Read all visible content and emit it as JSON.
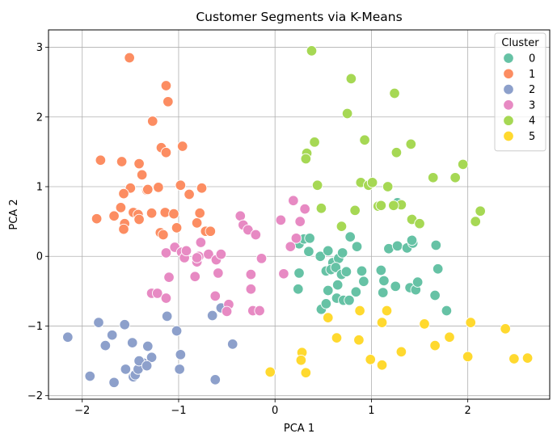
{
  "chart_data": {
    "type": "scatter",
    "title": "Customer Segments via K-Means",
    "xlabel": "PCA 1",
    "ylabel": "PCA 2",
    "xlim": [
      -2.35,
      2.85
    ],
    "ylim": [
      -2.05,
      3.25
    ],
    "xticks": [
      "−2",
      "−1",
      "0",
      "1",
      "2"
    ],
    "yticks": [
      "−2",
      "−1",
      "0",
      "1",
      "2",
      "3"
    ],
    "grid": true,
    "legend": {
      "title": "Cluster",
      "position": "top-right"
    },
    "series": [
      {
        "name": "0",
        "color": "#66c2a5",
        "points": [
          [
            0.25,
            0.18
          ],
          [
            0.3,
            0.25
          ],
          [
            0.35,
            0.07
          ],
          [
            0.36,
            0.26
          ],
          [
            0.25,
            -0.24
          ],
          [
            0.24,
            -0.47
          ],
          [
            0.47,
            0.0
          ],
          [
            0.55,
            0.08
          ],
          [
            0.6,
            -0.09
          ],
          [
            0.66,
            -0.03
          ],
          [
            0.7,
            0.05
          ],
          [
            0.78,
            0.28
          ],
          [
            0.85,
            0.14
          ],
          [
            0.53,
            -0.21
          ],
          [
            0.58,
            -0.19
          ],
          [
            0.63,
            -0.16
          ],
          [
            0.69,
            -0.26
          ],
          [
            0.74,
            -0.22
          ],
          [
            0.55,
            -0.49
          ],
          [
            0.65,
            -0.41
          ],
          [
            0.48,
            -0.76
          ],
          [
            0.53,
            -0.68
          ],
          [
            0.64,
            -0.6
          ],
          [
            0.71,
            -0.63
          ],
          [
            0.77,
            -0.63
          ],
          [
            0.84,
            -0.51
          ],
          [
            0.92,
            -0.36
          ],
          [
            0.9,
            -0.21
          ],
          [
            1.1,
            -0.2
          ],
          [
            1.13,
            -0.35
          ],
          [
            1.25,
            -0.43
          ],
          [
            1.12,
            -0.52
          ],
          [
            1.18,
            0.11
          ],
          [
            1.27,
            0.15
          ],
          [
            1.37,
            0.12
          ],
          [
            1.43,
            0.19
          ],
          [
            1.42,
            0.23
          ],
          [
            1.4,
            -0.45
          ],
          [
            1.46,
            -0.48
          ],
          [
            1.48,
            -0.37
          ],
          [
            1.67,
            0.16
          ],
          [
            1.69,
            -0.18
          ],
          [
            1.66,
            -0.56
          ],
          [
            1.78,
            -0.78
          ],
          [
            1.27,
            0.77
          ]
        ]
      },
      {
        "name": "1",
        "color": "#fc8d62",
        "points": [
          [
            -1.51,
            2.85
          ],
          [
            -1.13,
            2.45
          ],
          [
            -1.11,
            2.22
          ],
          [
            -1.27,
            1.94
          ],
          [
            -1.18,
            1.56
          ],
          [
            -1.13,
            1.49
          ],
          [
            -0.96,
            1.58
          ],
          [
            -1.81,
            1.38
          ],
          [
            -1.59,
            1.36
          ],
          [
            -1.41,
            1.33
          ],
          [
            -1.38,
            1.17
          ],
          [
            -1.5,
            0.98
          ],
          [
            -1.57,
            0.9
          ],
          [
            -1.33,
            0.95
          ],
          [
            -1.21,
            0.99
          ],
          [
            -0.98,
            1.02
          ],
          [
            -0.89,
            0.89
          ],
          [
            -0.76,
            0.98
          ],
          [
            -1.32,
            0.96
          ],
          [
            -1.28,
            0.62
          ],
          [
            -1.14,
            0.63
          ],
          [
            -1.05,
            0.61
          ],
          [
            -0.81,
            0.48
          ],
          [
            -0.78,
            0.62
          ],
          [
            -0.72,
            0.36
          ],
          [
            -0.67,
            0.36
          ],
          [
            -1.6,
            0.7
          ],
          [
            -1.47,
            0.63
          ],
          [
            -1.42,
            0.6
          ],
          [
            -1.41,
            0.53
          ],
          [
            -1.56,
            0.47
          ],
          [
            -1.67,
            0.58
          ],
          [
            -1.19,
            0.34
          ],
          [
            -1.16,
            0.31
          ],
          [
            -1.85,
            0.54
          ],
          [
            -1.02,
            0.41
          ],
          [
            -1.57,
            0.39
          ]
        ]
      },
      {
        "name": "2",
        "color": "#8da0cb",
        "points": [
          [
            -2.15,
            -1.16
          ],
          [
            -1.83,
            -0.95
          ],
          [
            -1.92,
            -1.72
          ],
          [
            -1.76,
            -1.28
          ],
          [
            -1.69,
            -1.13
          ],
          [
            -1.56,
            -0.98
          ],
          [
            -1.48,
            -1.24
          ],
          [
            -1.32,
            -1.29
          ],
          [
            -1.37,
            -1.53
          ],
          [
            -1.55,
            -1.62
          ],
          [
            -1.47,
            -1.73
          ],
          [
            -1.45,
            -1.7
          ],
          [
            -1.42,
            -1.62
          ],
          [
            -1.41,
            -1.5
          ],
          [
            -1.28,
            -1.45
          ],
          [
            -1.67,
            -1.81
          ],
          [
            -1.33,
            -1.57
          ],
          [
            -1.12,
            -0.86
          ],
          [
            -1.02,
            -1.07
          ],
          [
            -0.98,
            -1.41
          ],
          [
            -0.99,
            -1.62
          ],
          [
            -0.65,
            -0.85
          ],
          [
            -0.56,
            -0.74
          ],
          [
            -0.44,
            -1.26
          ],
          [
            -0.62,
            -1.77
          ]
        ]
      },
      {
        "name": "3",
        "color": "#e78ac3",
        "points": [
          [
            -1.28,
            -0.53
          ],
          [
            -1.22,
            -0.53
          ],
          [
            -1.13,
            -0.6
          ],
          [
            -1.1,
            -0.3
          ],
          [
            -1.04,
            0.13
          ],
          [
            -1.13,
            0.05
          ],
          [
            -0.97,
            0.06
          ],
          [
            -0.94,
            -0.02
          ],
          [
            -0.92,
            0.08
          ],
          [
            -0.83,
            -0.29
          ],
          [
            -0.81,
            -0.08
          ],
          [
            -0.79,
            0.0
          ],
          [
            -0.77,
            0.2
          ],
          [
            -0.69,
            0.03
          ],
          [
            -0.61,
            -0.05
          ],
          [
            -0.56,
            0.03
          ],
          [
            -0.59,
            -0.24
          ],
          [
            -0.62,
            -0.57
          ],
          [
            -0.48,
            -0.69
          ],
          [
            -0.5,
            -0.79
          ],
          [
            -0.36,
            0.58
          ],
          [
            -0.33,
            0.45
          ],
          [
            -0.28,
            0.38
          ],
          [
            -0.2,
            0.31
          ],
          [
            -0.25,
            -0.26
          ],
          [
            -0.25,
            -0.47
          ],
          [
            -0.23,
            -0.78
          ],
          [
            -0.16,
            -0.78
          ],
          [
            -0.14,
            -0.03
          ],
          [
            0.06,
            0.52
          ],
          [
            0.19,
            0.8
          ],
          [
            0.22,
            0.26
          ],
          [
            0.26,
            0.5
          ],
          [
            0.31,
            0.68
          ],
          [
            0.09,
            -0.25
          ],
          [
            0.16,
            0.14
          ],
          [
            -0.81,
            -0.02
          ]
        ]
      },
      {
        "name": "4",
        "color": "#a6d854",
        "points": [
          [
            0.38,
            2.95
          ],
          [
            0.79,
            2.55
          ],
          [
            0.75,
            2.05
          ],
          [
            1.24,
            2.34
          ],
          [
            0.41,
            1.64
          ],
          [
            0.33,
            1.48
          ],
          [
            0.32,
            1.4
          ],
          [
            0.93,
            1.67
          ],
          [
            1.26,
            1.49
          ],
          [
            1.41,
            1.61
          ],
          [
            1.64,
            1.13
          ],
          [
            1.87,
            1.13
          ],
          [
            1.95,
            1.32
          ],
          [
            0.44,
            1.02
          ],
          [
            0.89,
            1.06
          ],
          [
            0.97,
            1.02
          ],
          [
            1.01,
            1.06
          ],
          [
            1.17,
            1.0
          ],
          [
            0.48,
            0.69
          ],
          [
            0.83,
            0.66
          ],
          [
            1.07,
            0.72
          ],
          [
            1.1,
            0.73
          ],
          [
            1.31,
            0.74
          ],
          [
            1.23,
            0.73
          ],
          [
            1.42,
            0.53
          ],
          [
            1.5,
            0.47
          ],
          [
            0.69,
            0.43
          ],
          [
            2.08,
            0.5
          ],
          [
            2.13,
            0.65
          ]
        ]
      },
      {
        "name": "5",
        "color": "#ffd92f",
        "points": [
          [
            -0.05,
            -1.66
          ],
          [
            0.28,
            -1.38
          ],
          [
            0.27,
            -1.49
          ],
          [
            0.32,
            -1.67
          ],
          [
            0.55,
            -0.88
          ],
          [
            0.64,
            -1.17
          ],
          [
            0.87,
            -1.2
          ],
          [
            0.88,
            -0.78
          ],
          [
            0.99,
            -1.48
          ],
          [
            1.11,
            -1.56
          ],
          [
            1.11,
            -0.95
          ],
          [
            1.16,
            -0.78
          ],
          [
            1.31,
            -1.37
          ],
          [
            1.55,
            -0.97
          ],
          [
            1.66,
            -1.28
          ],
          [
            1.81,
            -1.16
          ],
          [
            2.0,
            -1.44
          ],
          [
            2.03,
            -0.95
          ],
          [
            2.39,
            -1.04
          ],
          [
            2.48,
            -1.47
          ],
          [
            2.62,
            -1.46
          ]
        ]
      }
    ]
  }
}
